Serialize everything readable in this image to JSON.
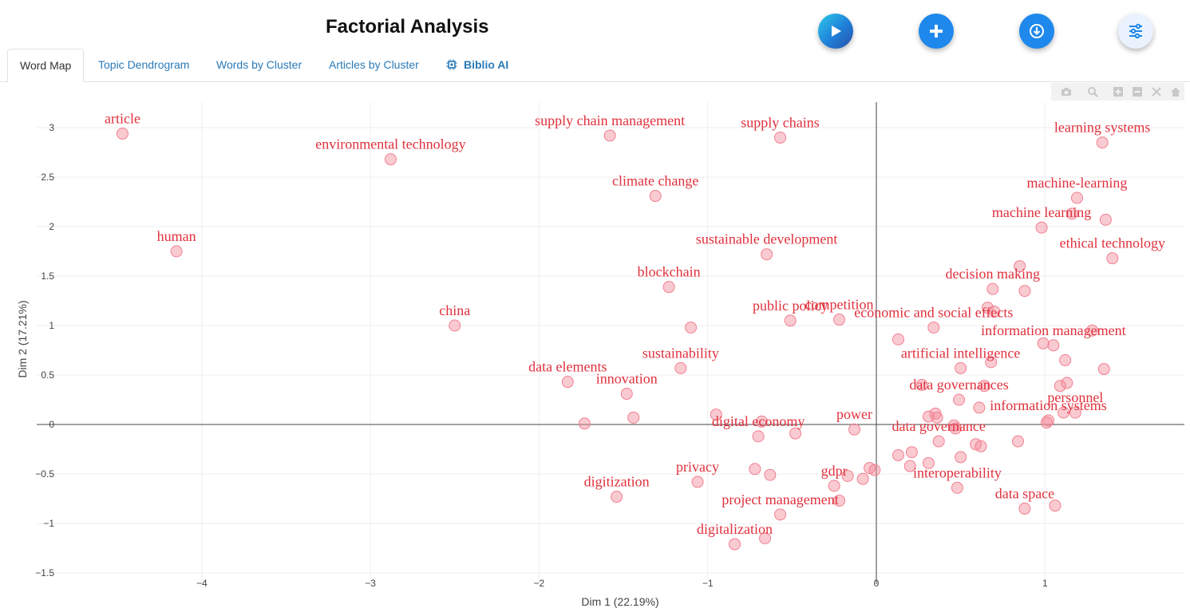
{
  "header": {
    "title": "Factorial Analysis",
    "run_icon": "play-icon",
    "add_icon": "plus-icon",
    "download_icon": "download-icon",
    "options_icon": "sliders-icon"
  },
  "tabs": [
    {
      "label": "Word Map",
      "active": true
    },
    {
      "label": "Topic Dendrogram",
      "active": false
    },
    {
      "label": "Words by Cluster",
      "active": false
    },
    {
      "label": "Articles by Cluster",
      "active": false
    },
    {
      "label": "Biblio AI",
      "active": false
    }
  ],
  "colors": {
    "accent": "#1e88ec",
    "label_text": "#e0303c",
    "point_fill": "#f48a98",
    "tab_link": "#2a7ab8"
  },
  "modebar_icons": [
    "camera-icon",
    "zoom-icon",
    "zoom-in-icon",
    "zoom-out-icon",
    "autoscale-icon",
    "home-icon"
  ],
  "chart_data": {
    "type": "scatter",
    "xlabel": "Dim 1 (22.19%)",
    "ylabel": "Dim 2 (17.21%)",
    "xlim": [
      -4.88,
      1.83
    ],
    "ylim": [
      -1.5,
      3.25
    ],
    "xticks": [
      -4,
      -3,
      -2,
      -1,
      0,
      1
    ],
    "yticks": [
      -1.5,
      -1,
      -0.5,
      0,
      0.5,
      1,
      1.5,
      2,
      2.5,
      3
    ],
    "xtick_labels": [
      "−4",
      "−3",
      "−2",
      "−1",
      "0",
      "1"
    ],
    "ytick_labels": [
      "−1.5",
      "−1",
      "−0.5",
      "0",
      "0.5",
      "1",
      "1.5",
      "2",
      "2.5",
      "3"
    ],
    "grid": true,
    "zero_lines": true,
    "points": [
      {
        "label": "article",
        "x": -4.47,
        "y": 2.94
      },
      {
        "label": "environmental technology",
        "x": -2.88,
        "y": 2.68
      },
      {
        "label": "human",
        "x": -4.15,
        "y": 1.75
      },
      {
        "label": "china",
        "x": -2.5,
        "y": 1.0
      },
      {
        "label": "supply chain management",
        "x": -1.58,
        "y": 2.92
      },
      {
        "label": "supply chains",
        "x": -0.57,
        "y": 2.9
      },
      {
        "label": "climate change",
        "x": -1.31,
        "y": 2.31
      },
      {
        "label": "sustainable development",
        "x": -0.65,
        "y": 1.72
      },
      {
        "label": "blockchain",
        "x": -1.23,
        "y": 1.39
      },
      {
        "label": "public policy",
        "x": -0.51,
        "y": 1.05
      },
      {
        "label": "competition",
        "x": -0.22,
        "y": 1.06
      },
      {
        "label": "economic and social effects",
        "x": 0.34,
        "y": 0.98
      },
      {
        "label": "sustainability",
        "x": -1.16,
        "y": 0.57
      },
      {
        "label": "data elements",
        "x": -1.83,
        "y": 0.43
      },
      {
        "label": "innovation",
        "x": -1.48,
        "y": 0.31
      },
      {
        "label": "digital economy",
        "x": -0.7,
        "y": -0.12
      },
      {
        "label": "power",
        "x": -0.13,
        "y": -0.05
      },
      {
        "label": "data governance",
        "x": 0.37,
        "y": -0.17
      },
      {
        "label": "privacy",
        "x": -1.06,
        "y": -0.58
      },
      {
        "label": "digitization",
        "x": -1.54,
        "y": -0.73
      },
      {
        "label": "gdpr",
        "x": -0.25,
        "y": -0.62
      },
      {
        "label": "project management",
        "x": -0.57,
        "y": -0.91
      },
      {
        "label": "digitalization",
        "x": -0.84,
        "y": -1.21
      },
      {
        "label": "interoperability",
        "x": 0.48,
        "y": -0.64
      },
      {
        "label": "data space",
        "x": 0.88,
        "y": -0.85
      },
      {
        "label": "learning systems",
        "x": 1.34,
        "y": 2.85
      },
      {
        "label": "machine-learning",
        "x": 1.19,
        "y": 2.29
      },
      {
        "label": "machine learning",
        "x": 0.98,
        "y": 1.99
      },
      {
        "label": "ethical technology",
        "x": 1.4,
        "y": 1.68
      },
      {
        "label": "decision making",
        "x": 0.69,
        "y": 1.37
      },
      {
        "label": "information management",
        "x": 1.05,
        "y": 0.8
      },
      {
        "label": "artificial intelligence",
        "x": 0.5,
        "y": 0.57
      },
      {
        "label": "data governances",
        "x": 0.49,
        "y": 0.25
      },
      {
        "label": "information systems",
        "x": 1.02,
        "y": 0.04
      },
      {
        "label": "personnel",
        "x": 1.18,
        "y": 0.12
      },
      {
        "label": "",
        "x": 1.16,
        "y": 2.13
      },
      {
        "label": "",
        "x": 1.36,
        "y": 2.07
      },
      {
        "label": "",
        "x": 0.85,
        "y": 1.6
      },
      {
        "label": "",
        "x": 0.88,
        "y": 1.35
      },
      {
        "label": "",
        "x": 0.66,
        "y": 1.18
      },
      {
        "label": "",
        "x": 0.7,
        "y": 1.14
      },
      {
        "label": "",
        "x": 1.28,
        "y": 0.95
      },
      {
        "label": "",
        "x": 0.13,
        "y": 0.86
      },
      {
        "label": "",
        "x": 0.99,
        "y": 0.82
      },
      {
        "label": "",
        "x": 1.12,
        "y": 0.65
      },
      {
        "label": "",
        "x": 0.68,
        "y": 0.63
      },
      {
        "label": "",
        "x": 1.35,
        "y": 0.56
      },
      {
        "label": "",
        "x": 1.13,
        "y": 0.42
      },
      {
        "label": "",
        "x": 1.09,
        "y": 0.39
      },
      {
        "label": "",
        "x": 0.64,
        "y": 0.39
      },
      {
        "label": "",
        "x": 0.27,
        "y": 0.4
      },
      {
        "label": "",
        "x": 0.61,
        "y": 0.17
      },
      {
        "label": "",
        "x": 1.11,
        "y": 0.12
      },
      {
        "label": "",
        "x": 0.35,
        "y": 0.11
      },
      {
        "label": "",
        "x": 0.31,
        "y": 0.08
      },
      {
        "label": "",
        "x": 0.36,
        "y": 0.07
      },
      {
        "label": "",
        "x": 1.01,
        "y": 0.02
      },
      {
        "label": "",
        "x": 0.46,
        "y": -0.01
      },
      {
        "label": "",
        "x": 0.47,
        "y": -0.04
      },
      {
        "label": "",
        "x": -0.95,
        "y": 0.1
      },
      {
        "label": "",
        "x": -0.68,
        "y": 0.03
      },
      {
        "label": "",
        "x": -1.44,
        "y": 0.07
      },
      {
        "label": "",
        "x": -1.73,
        "y": 0.01
      },
      {
        "label": "",
        "x": -1.1,
        "y": 0.98
      },
      {
        "label": "",
        "x": -0.48,
        "y": -0.09
      },
      {
        "label": "",
        "x": 0.84,
        "y": -0.17
      },
      {
        "label": "",
        "x": 0.59,
        "y": -0.2
      },
      {
        "label": "",
        "x": 0.62,
        "y": -0.22
      },
      {
        "label": "",
        "x": 0.13,
        "y": -0.31
      },
      {
        "label": "",
        "x": 0.21,
        "y": -0.28
      },
      {
        "label": "",
        "x": 0.5,
        "y": -0.33
      },
      {
        "label": "",
        "x": 0.31,
        "y": -0.39
      },
      {
        "label": "",
        "x": 0.2,
        "y": -0.42
      },
      {
        "label": "",
        "x": -0.04,
        "y": -0.44
      },
      {
        "label": "",
        "x": -0.01,
        "y": -0.46
      },
      {
        "label": "",
        "x": -0.72,
        "y": -0.45
      },
      {
        "label": "",
        "x": -0.63,
        "y": -0.51
      },
      {
        "label": "",
        "x": -0.17,
        "y": -0.52
      },
      {
        "label": "",
        "x": -0.08,
        "y": -0.55
      },
      {
        "label": "",
        "x": -0.22,
        "y": -0.77
      },
      {
        "label": "",
        "x": 1.06,
        "y": -0.82
      },
      {
        "label": "",
        "x": -0.66,
        "y": -1.15
      }
    ]
  }
}
